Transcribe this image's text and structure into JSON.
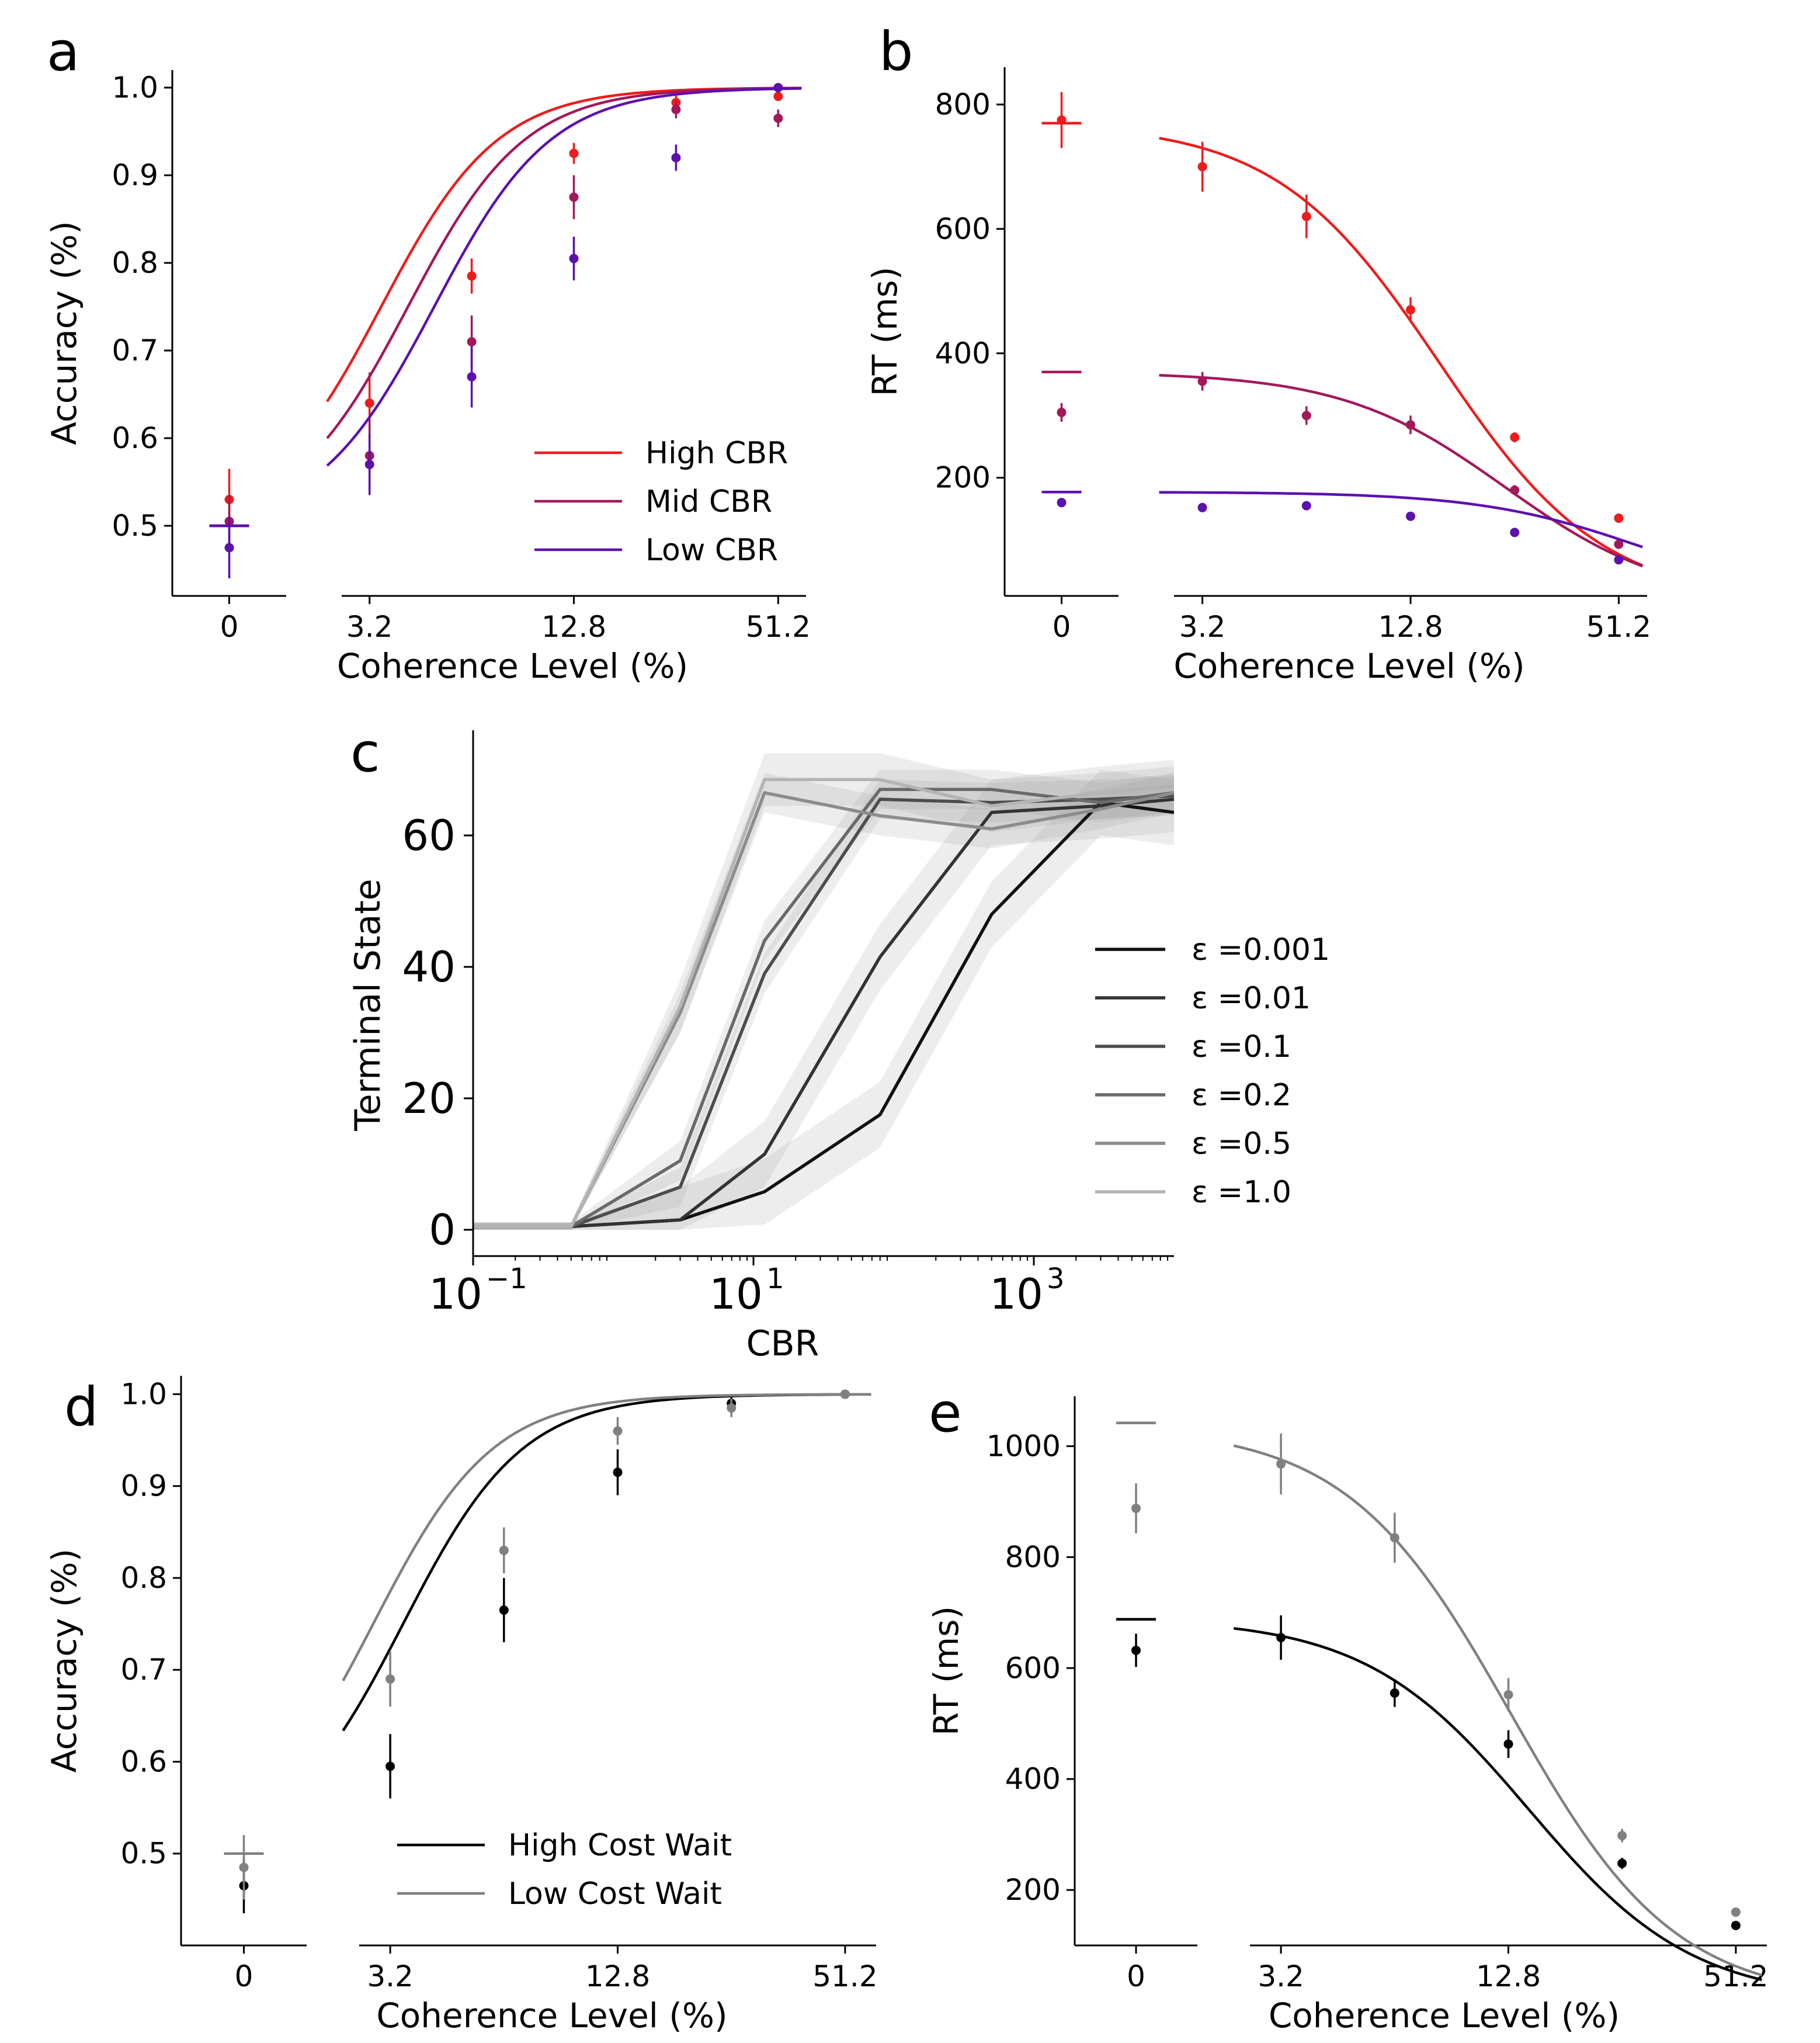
{
  "chart_data": [
    {
      "panel": "a",
      "type": "line",
      "ylabel": "Accuracy (%)",
      "xlabel": "Coherence Level (%)",
      "zero_tick": "0",
      "xticks": [
        "3.2",
        "12.8",
        "51.2"
      ],
      "yticks": [
        "0.5",
        "0.6",
        "0.7",
        "0.8",
        "0.9",
        "1.0"
      ],
      "ylim": [
        0.42,
        1.02
      ],
      "x_coherence": [
        3.2,
        6.4,
        12.8,
        25.6,
        51.2
      ],
      "legend_position": "lower-right",
      "series": [
        {
          "name": "High CBR",
          "color": "#ee1c1c",
          "zero": {
            "value": 0.53,
            "err": 0.035
          },
          "values": [
            0.64,
            0.785,
            0.925,
            0.983,
            0.99
          ],
          "errors": [
            0.035,
            0.02,
            0.012,
            0.008,
            0.004
          ],
          "fit": {
            "mid": 6.0,
            "k": 1.15,
            "lo": 0.5,
            "hi": 1.0
          },
          "zero_fit": 0.5
        },
        {
          "name": "Mid CBR",
          "color": "#a3185a",
          "zero": {
            "value": 0.505,
            "err": 0.03
          },
          "values": [
            0.58,
            0.71,
            0.875,
            0.975,
            0.965
          ],
          "errors": [
            0.04,
            0.03,
            0.025,
            0.01,
            0.01
          ],
          "fit": {
            "mid": 7.2,
            "k": 1.15,
            "lo": 0.5,
            "hi": 1.0
          },
          "zero_fit": 0.5
        },
        {
          "name": "Low CBR",
          "color": "#5c10b0",
          "zero": {
            "value": 0.475,
            "err": 0.035
          },
          "values": [
            0.57,
            0.67,
            0.805,
            0.92,
            1.0
          ],
          "errors": [
            0.035,
            0.035,
            0.025,
            0.015,
            0.002
          ],
          "fit": {
            "mid": 8.6,
            "k": 1.15,
            "lo": 0.5,
            "hi": 1.0
          },
          "zero_fit": 0.5
        }
      ]
    },
    {
      "panel": "b",
      "type": "line",
      "ylabel": "RT (ms)",
      "xlabel": "Coherence Level (%)",
      "zero_tick": "0",
      "xticks": [
        "3.2",
        "12.8",
        "51.2"
      ],
      "yticks": [
        "200",
        "400",
        "600",
        "800"
      ],
      "ylim": [
        10,
        860
      ],
      "x_coherence": [
        3.2,
        6.4,
        12.8,
        25.6,
        51.2
      ],
      "series": [
        {
          "name": "High CBR",
          "color": "#ee1c1c",
          "zero": {
            "value": 775,
            "err": 45
          },
          "zero_fit": 770,
          "values": [
            700,
            620,
            470,
            265,
            135
          ],
          "errors": [
            40,
            35,
            20,
            8,
            4
          ],
          "fit": {
            "a": 770,
            "mid": 15.5,
            "k": 1.15,
            "lo": 0
          }
        },
        {
          "name": "Mid CBR",
          "color": "#a3185a",
          "zero": {
            "value": 305,
            "err": 15
          },
          "zero_fit": 370,
          "values": [
            355,
            300,
            285,
            180,
            93
          ],
          "errors": [
            15,
            15,
            15,
            8,
            4
          ],
          "fit": {
            "a": 370,
            "mid": 24,
            "k": 1.15,
            "lo": 0
          }
        },
        {
          "name": "Low CBR",
          "color": "#5c10b0",
          "zero": {
            "value": 160,
            "err": 6
          },
          "zero_fit": 177,
          "values": [
            152,
            155,
            138,
            112,
            68
          ],
          "errors": [
            6,
            6,
            5,
            5,
            4
          ],
          "fit": {
            "a": 177,
            "mid": 60,
            "k": 1.15,
            "lo": 0
          }
        }
      ]
    },
    {
      "panel": "c",
      "type": "line",
      "xscale": "log",
      "xlabel": "CBR",
      "ylabel": "Terminal State",
      "xlim": [
        0.1,
        10000
      ],
      "ylim": [
        -4,
        76
      ],
      "xticks": [
        {
          "base": "10",
          "exp": "−1",
          "value": 0.1
        },
        {
          "base": "10",
          "exp": "1",
          "value": 10
        },
        {
          "base": "10",
          "exp": "3",
          "value": 1000
        }
      ],
      "yticks": [
        "0",
        "20",
        "40",
        "60"
      ],
      "x": [
        0.1,
        0.5,
        3,
        12,
        80,
        500,
        3000,
        10000
      ],
      "series": [
        {
          "name": "ε =0.001",
          "color": "#111111",
          "values": [
            0.5,
            0.5,
            1.5,
            5.8,
            17.5,
            48,
            65,
            63.5
          ],
          "band": 5
        },
        {
          "name": "ε =0.01",
          "color": "#333333",
          "values": [
            0.5,
            0.5,
            1.5,
            11.5,
            41.5,
            63.5,
            64.5,
            65.5
          ],
          "band": 5
        },
        {
          "name": "ε =0.1",
          "color": "#4d4d4d",
          "values": [
            0.5,
            0.5,
            6.5,
            39,
            65.5,
            65,
            65.5,
            66
          ],
          "band": 3
        },
        {
          "name": "ε =0.2",
          "color": "#6a6a6a",
          "values": [
            0.5,
            0.5,
            10.5,
            44,
            67,
            67,
            65,
            66.5
          ],
          "band": 3
        },
        {
          "name": "ε =0.5",
          "color": "#8c8c8c",
          "values": [
            0.5,
            0.5,
            33,
            66.5,
            63,
            61,
            64,
            66.5
          ],
          "band": 3
        },
        {
          "name": "ε =1.0",
          "color": "#b4b4b4",
          "values": [
            0.5,
            0.5,
            34,
            68.5,
            68.5,
            64.5,
            66.5,
            67.5
          ],
          "band": 4
        }
      ]
    },
    {
      "panel": "d",
      "type": "line",
      "ylabel": "Accuracy (%)",
      "xlabel": "Coherence Level (%)",
      "zero_tick": "0",
      "xticks": [
        "3.2",
        "12.8",
        "51.2"
      ],
      "yticks": [
        "0.5",
        "0.6",
        "0.7",
        "0.8",
        "0.9",
        "1.0"
      ],
      "ylim": [
        0.4,
        1.02
      ],
      "x_coherence": [
        3.2,
        6.4,
        12.8,
        25.6,
        51.2
      ],
      "legend_position": "lower-center",
      "series": [
        {
          "name": "High Cost Wait",
          "color": "#000000",
          "zero": {
            "value": 0.465,
            "err": 0.03
          },
          "values": [
            0.595,
            0.765,
            0.915,
            0.99,
            1.0
          ],
          "errors": [
            0.035,
            0.035,
            0.025,
            0.008,
            0.002
          ],
          "fit": {
            "mid": 6.0,
            "k": 1.25,
            "lo": 0.5,
            "hi": 1.0
          },
          "zero_fit": 0.5
        },
        {
          "name": "Low Cost Wait",
          "color": "#808080",
          "zero": {
            "value": 0.485,
            "err": 0.035
          },
          "values": [
            0.69,
            0.83,
            0.96,
            0.985,
            1.0
          ],
          "errors": [
            0.03,
            0.025,
            0.015,
            0.01,
            0.002
          ],
          "fit": {
            "mid": 5.0,
            "k": 1.25,
            "lo": 0.5,
            "hi": 1.0
          },
          "zero_fit": 0.5
        }
      ]
    },
    {
      "panel": "e",
      "type": "line",
      "ylabel": "RT (ms)",
      "xlabel": "Coherence Level (%)",
      "zero_tick": "0",
      "xticks": [
        "3.2",
        "12.8",
        "51.2"
      ],
      "yticks": [
        "200",
        "400",
        "600",
        "800",
        "1000"
      ],
      "ylim": [
        100,
        1090
      ],
      "x_coherence": [
        3.2,
        6.4,
        12.8,
        25.6,
        51.2
      ],
      "series": [
        {
          "name": "High Cost Wait",
          "color": "#000000",
          "zero": {
            "value": 632,
            "err": 30
          },
          "zero_fit": 688,
          "values": [
            655,
            555,
            463,
            248,
            136
          ],
          "errors": [
            40,
            25,
            25,
            10,
            6
          ],
          "fit": {
            "a": 690,
            "mid": 14.5,
            "k": 1.25,
            "lo": 0
          }
        },
        {
          "name": "Low Cost Wait",
          "color": "#808080",
          "zero": {
            "value": 888,
            "err": 45
          },
          "zero_fit": 1042,
          "values": [
            968,
            835,
            552,
            298,
            160
          ],
          "errors": [
            55,
            45,
            30,
            12,
            6
          ],
          "fit": {
            "a": 1035,
            "mid": 13,
            "k": 1.25,
            "lo": 0
          }
        }
      ]
    }
  ]
}
